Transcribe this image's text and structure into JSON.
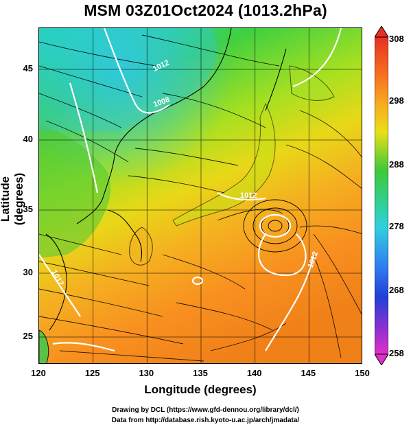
{
  "title": "MSM 03Z01Oct2024 (1013.2hPa)",
  "axes": {
    "xlabel": "Longitude (degrees)",
    "ylabel": "Latitude  (degrees)",
    "x_ticks": [
      "120",
      "125",
      "130",
      "135",
      "140",
      "145",
      "150"
    ],
    "y_ticks": [
      "45",
      "40",
      "35",
      "30",
      "25"
    ]
  },
  "colorbar": {
    "ticks": [
      "308",
      "298",
      "288",
      "278",
      "268",
      "258"
    ],
    "min": 258,
    "max": 308
  },
  "contour_labels": [
    "1012",
    "1008",
    "1012",
    "1012",
    "1012"
  ],
  "credits": {
    "line1": "Drawing by DCL (https://www.gfd-dennou.org/library/dcl/)",
    "line2": "Data from http://database.rish.kyoto-u.ac.jp/arch/jmadata/"
  },
  "colors": {
    "warm": "#ff8c1a",
    "mid": "#e0e010",
    "cool": "#30c840",
    "cold": "#30d0e0"
  }
}
